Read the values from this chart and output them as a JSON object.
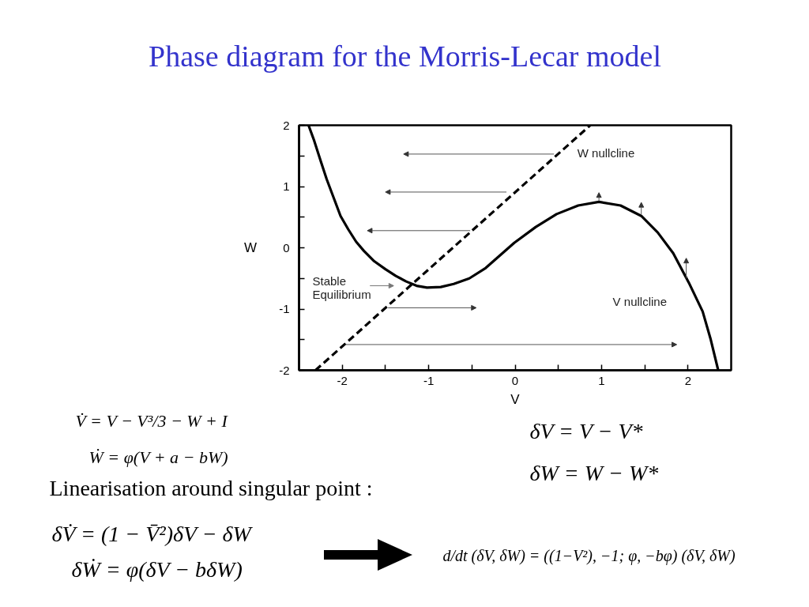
{
  "chart_data": {
    "type": "line",
    "title": "Phase diagram for the Morris-Lecar model",
    "xlabel": "V",
    "ylabel": "W",
    "xlim": [
      -2.5,
      2.5
    ],
    "ylim": [
      -2,
      2
    ],
    "xticks": [
      -2,
      {
        "value": -1.5,
        "label": null
      },
      -1,
      {
        "value": -0.5,
        "label": null
      },
      0,
      {
        "value": 0.5,
        "label": null
      },
      1,
      {
        "value": 1.5,
        "label": null
      },
      2
    ],
    "yticks": [
      -2,
      {
        "value": -1.5,
        "label": null
      },
      -1,
      {
        "value": -0.5,
        "label": null
      },
      0,
      {
        "value": 0.5,
        "label": null
      },
      1,
      {
        "value": 1.5,
        "label": null
      },
      2
    ],
    "line_style": "solid",
    "series": [
      {
        "name": "V nullcline",
        "color": "#000000",
        "x": [
          -2.39,
          -2.33,
          -2.25,
          -2.18,
          -2.1,
          -2.02,
          -1.93,
          -1.84,
          -1.75,
          -1.63,
          -1.5,
          -1.38,
          -1.26,
          -1.14,
          -1.02,
          -0.86,
          -0.71,
          -0.53,
          -0.34,
          -0.01,
          0.24,
          0.48,
          0.73,
          0.97,
          1.22,
          1.46,
          1.65,
          1.83,
          2.01,
          2.17,
          2.26,
          2.35
        ],
        "values": [
          2.0,
          1.77,
          1.42,
          1.12,
          0.82,
          0.52,
          0.3,
          0.1,
          -0.05,
          -0.22,
          -0.35,
          -0.46,
          -0.55,
          -0.62,
          -0.65,
          -0.64,
          -0.59,
          -0.5,
          -0.33,
          0.08,
          0.34,
          0.55,
          0.69,
          0.75,
          0.69,
          0.52,
          0.25,
          -0.09,
          -0.57,
          -1.04,
          -1.48,
          -2.0
        ]
      },
      {
        "name": "W nullcline",
        "color": "#000000",
        "line_style": "dashed",
        "x": [
          -2.31,
          0.87
        ],
        "values": [
          -2,
          2
        ]
      }
    ],
    "annotations": [
      "Stable\nEquilibrium",
      "V̇ = V − V³/3 − W + I",
      "Ẇ = φ(V + a − bW)",
      "Linearisation around singular point :",
      "δV̇ = (1 − V̄²)δV − δW",
      "δẆ = φ(δV − bδW)",
      "δV = V − V*",
      "δW = W − W*",
      "d/dt (δV, δW) = ((1−V²), −1; φ, −bφ) (δV, δW)"
    ]
  }
}
